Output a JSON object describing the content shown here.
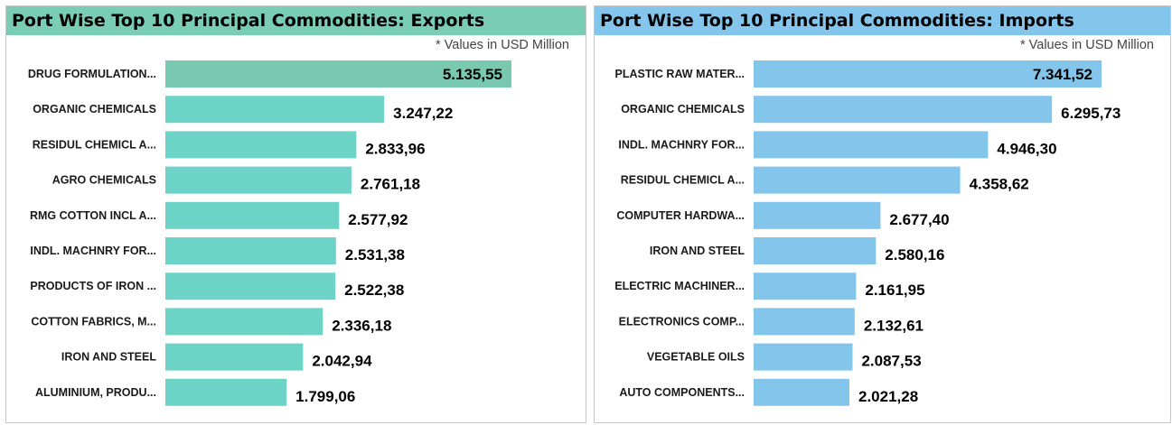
{
  "units_note": "* Values in USD Million",
  "chart_data": [
    {
      "type": "bar",
      "orientation": "horizontal",
      "title": "Port Wise Top 10 Principal Commodities: Exports",
      "header_color": "#78cdb4",
      "bar_color": "#6dd3c7",
      "highlight_color": "#78c9b0",
      "categories": [
        "DRUG FORMULATION...",
        "ORGANIC CHEMICALS",
        "RESIDUL CHEMICL A...",
        "AGRO CHEMICALS",
        "RMG COTTON INCL A...",
        "INDL. MACHNRY FOR...",
        "PRODUCTS OF IRON ...",
        "COTTON FABRICS, M...",
        "IRON AND STEEL",
        "ALUMINIUM, PRODU..."
      ],
      "values": [
        5135.55,
        3247.22,
        2833.96,
        2761.18,
        2577.92,
        2531.38,
        2522.38,
        2336.18,
        2042.94,
        1799.06
      ],
      "value_labels": [
        "5.135,55",
        "3.247,22",
        "2.833,96",
        "2.761,18",
        "2.577,92",
        "2.531,38",
        "2.522,38",
        "2.336,18",
        "2.042,94",
        "1.799,06"
      ],
      "xlim": [
        0,
        5135.55
      ]
    },
    {
      "type": "bar",
      "orientation": "horizontal",
      "title": "Port Wise Top 10 Principal Commodities: Imports",
      "header_color": "#84c5ec",
      "bar_color": "#84c5ec",
      "highlight_color": "#84c5ec",
      "categories": [
        "PLASTIC RAW MATER...",
        "ORGANIC CHEMICALS",
        "INDL. MACHNRY FOR...",
        "RESIDUL CHEMICL A...",
        "COMPUTER HARDWA...",
        "IRON AND STEEL",
        "ELECTRIC MACHINER...",
        "ELECTRONICS COMP...",
        "VEGETABLE OILS",
        "AUTO COMPONENTS..."
      ],
      "values": [
        7341.52,
        6295.73,
        4946.3,
        4358.62,
        2677.4,
        2580.16,
        2161.95,
        2132.61,
        2087.53,
        2021.28
      ],
      "value_labels": [
        "7.341,52",
        "6.295,73",
        "4.946,30",
        "4.358,62",
        "2.677,40",
        "2.580,16",
        "2.161,95",
        "2.132,61",
        "2.087,53",
        "2.021,28"
      ],
      "xlim": [
        0,
        7341.52
      ]
    }
  ]
}
